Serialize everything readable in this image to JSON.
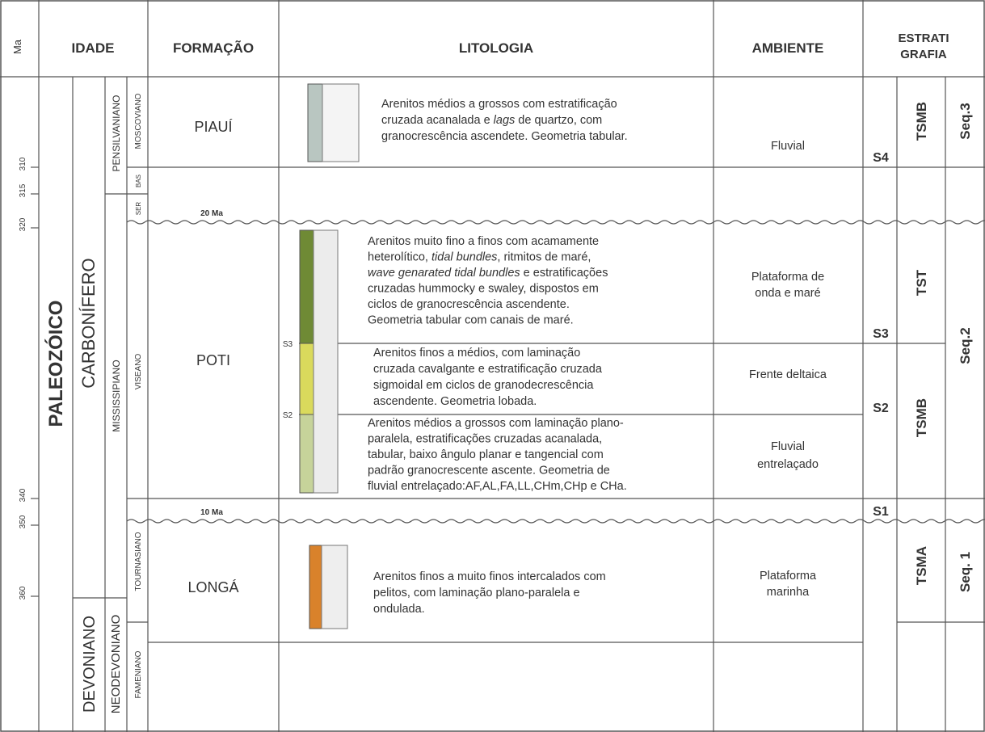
{
  "header": {
    "ma": "Ma",
    "idade": "IDADE",
    "formacao": "FORMAÇÃO",
    "litologia": "LITOLOGIA",
    "ambiente": "AMBIENTE",
    "estratigrafia": [
      "ESTRATI",
      "GRAFIA"
    ]
  },
  "ma_ticks": [
    310,
    315,
    320,
    340,
    350,
    360
  ],
  "idade": {
    "era": "PALEOZÓICO",
    "periods": [
      "CARBONÍFERO",
      "DEVONIANO"
    ],
    "epochs": [
      "PENSILVANIANO",
      "MISSISSIPIANO",
      "NEODEVONIANO"
    ],
    "stages": [
      "MOSCOVIANO",
      "BAS",
      "SER",
      "VISEANO",
      "TOURNASIANO",
      "FAMENIANO"
    ]
  },
  "hiatus": [
    "20 Ma",
    "10 Ma"
  ],
  "formations": [
    "PIAUÍ",
    "POTI",
    "LONGÁ"
  ],
  "units": [
    {
      "lines": [
        "Arenitos médios a grossos com estratificação",
        [
          "cruzada acanalada e ",
          {
            "text": "lags",
            "italic": true
          },
          " de quartzo, com"
        ],
        "granocrescência ascendete. Geometria tabular."
      ],
      "ambiente": [
        "Fluvial"
      ]
    },
    {
      "lines": [
        "Arenitos muito fino a finos com acamamente",
        [
          "heterolítico, ",
          {
            "text": "tidal bundles",
            "italic": true
          },
          ", ritmitos de maré,"
        ],
        [
          {
            "text": "wave genarated tidal bundles",
            "italic": true
          },
          " e estratificações"
        ],
        "cruzadas hummocky e swaley, dispostos em",
        "ciclos de granocrescência ascendente.",
        "Geometria tabular com canais de maré."
      ],
      "ambiente": [
        "Plataforma de",
        "onda e maré"
      ]
    },
    {
      "lines": [
        "Arenitos finos a médios, com laminação",
        "cruzada cavalgante e estratificação cruzada",
        "sigmoidal em ciclos de granodecrescência",
        "ascendente. Geometria lobada."
      ],
      "ambiente": [
        "Frente deltaica"
      ]
    },
    {
      "lines": [
        "Arenitos médios a grossos com laminação plano-",
        "paralela, estratificações cruzadas acanalada,",
        "tabular, baixo ângulo planar e tangencial com",
        "padrão granocrescente ascente. Geometria de",
        "fluvial entrelaçado:AF,AL,FA,LL,CHm,CHp e CHa."
      ],
      "ambiente": [
        "Fluvial",
        "entrelaçado"
      ]
    },
    {
      "lines": [
        "Arenitos finos a muito finos intercalados com",
        "pelitos, com laminação plano-paralela e",
        "ondulada."
      ],
      "ambiente": [
        "Plataforma",
        "marinha"
      ]
    }
  ],
  "log_surfaces": [
    "S3",
    "S2"
  ],
  "surfaces": [
    "S4",
    "S3",
    "S2",
    "S1"
  ],
  "systems_tracts": [
    "TSMB",
    "TST",
    "TSMB",
    "TSMA"
  ],
  "sequences": [
    "Seq.3",
    "Seq.2",
    "Seq. 1"
  ]
}
